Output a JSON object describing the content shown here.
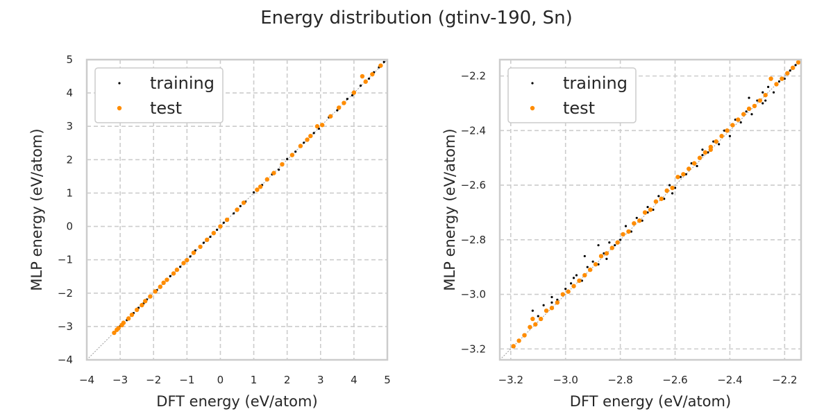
{
  "figure": {
    "title": "Energy distribution (gtinv-190, Sn)"
  },
  "colors": {
    "training": "#000000",
    "test": "#ff8c00",
    "grid": "#cccccc",
    "frame": "#cccccc",
    "diagonal": "#999999"
  },
  "chart_data": [
    {
      "type": "scatter",
      "xlabel": "DFT energy (eV/atom)",
      "ylabel": "MLP energy (eV/atom)",
      "xlim": [
        -4,
        5
      ],
      "ylim": [
        -4,
        5
      ],
      "xticks": [
        -4,
        -3,
        -2,
        -1,
        0,
        1,
        2,
        3,
        4,
        5
      ],
      "yticks": [
        -4,
        -3,
        -2,
        -1,
        0,
        1,
        2,
        3,
        4,
        5
      ],
      "xtick_labels": [
        "−4",
        "−3",
        "−2",
        "−1",
        "0",
        "1",
        "2",
        "3",
        "4",
        "5"
      ],
      "ytick_labels": [
        "−4",
        "−3",
        "−2",
        "−1",
        "0",
        "1",
        "2",
        "3",
        "4",
        "5"
      ],
      "grid": true,
      "grid_style": "dashed",
      "reference_line": "y = x",
      "legend_position": "upper-left",
      "series": [
        {
          "name": "training",
          "marker": "small-dot",
          "points": [
            [
              -3.15,
              -3.16
            ],
            [
              -3.0,
              -2.99
            ],
            [
              -2.8,
              -2.81
            ],
            [
              -2.6,
              -2.6
            ],
            [
              -2.45,
              -2.44
            ],
            [
              -2.3,
              -2.31
            ],
            [
              -2.2,
              -2.19
            ],
            [
              -1.9,
              -1.91
            ],
            [
              -1.5,
              -1.49
            ],
            [
              -1.2,
              -1.21
            ],
            [
              -0.9,
              -0.9
            ],
            [
              -0.75,
              -0.72
            ],
            [
              -0.5,
              -0.49
            ],
            [
              -0.3,
              -0.31
            ],
            [
              -0.1,
              -0.1
            ],
            [
              0.1,
              0.11
            ],
            [
              0.4,
              0.39
            ],
            [
              0.6,
              0.61
            ],
            [
              0.75,
              0.74
            ],
            [
              1.0,
              1.02
            ],
            [
              1.25,
              1.24
            ],
            [
              1.55,
              1.56
            ],
            [
              1.75,
              1.7
            ],
            [
              2.0,
              2.02
            ],
            [
              2.25,
              2.24
            ],
            [
              2.5,
              2.51
            ],
            [
              2.8,
              2.8
            ],
            [
              2.95,
              2.93
            ],
            [
              3.25,
              3.27
            ],
            [
              3.5,
              3.48
            ],
            [
              3.8,
              3.82
            ],
            [
              3.95,
              3.93
            ],
            [
              4.2,
              4.22
            ],
            [
              4.45,
              4.43
            ],
            [
              4.6,
              4.62
            ],
            [
              4.75,
              4.77
            ],
            [
              4.9,
              4.93
            ]
          ]
        },
        {
          "name": "test",
          "marker": "dot",
          "points": [
            [
              -3.18,
              -3.19
            ],
            [
              -3.1,
              -3.1
            ],
            [
              -3.05,
              -3.05
            ],
            [
              -2.95,
              -2.96
            ],
            [
              -2.9,
              -2.89
            ],
            [
              -2.75,
              -2.76
            ],
            [
              -2.65,
              -2.65
            ],
            [
              -2.5,
              -2.5
            ],
            [
              -2.35,
              -2.36
            ],
            [
              -2.25,
              -2.24
            ],
            [
              -2.1,
              -2.1
            ],
            [
              -1.95,
              -1.95
            ],
            [
              -1.8,
              -1.81
            ],
            [
              -1.7,
              -1.69
            ],
            [
              -1.6,
              -1.6
            ],
            [
              -1.4,
              -1.41
            ],
            [
              -1.3,
              -1.3
            ],
            [
              -1.1,
              -1.1
            ],
            [
              -1.0,
              -1.01
            ],
            [
              -0.8,
              -0.79
            ],
            [
              -0.6,
              -0.61
            ],
            [
              -0.4,
              -0.4
            ],
            [
              -0.2,
              -0.2
            ],
            [
              0.0,
              0.0
            ],
            [
              0.2,
              0.2
            ],
            [
              0.5,
              0.5
            ],
            [
              0.7,
              0.71
            ],
            [
              1.1,
              1.1
            ],
            [
              1.2,
              1.19
            ],
            [
              1.4,
              1.41
            ],
            [
              1.6,
              1.6
            ],
            [
              1.85,
              1.86
            ],
            [
              2.15,
              2.14
            ],
            [
              2.4,
              2.41
            ],
            [
              2.6,
              2.6
            ],
            [
              2.7,
              2.71
            ],
            [
              2.9,
              3.0
            ],
            [
              3.05,
              3.04
            ],
            [
              3.3,
              3.3
            ],
            [
              3.55,
              3.56
            ],
            [
              3.7,
              3.7
            ],
            [
              4.0,
              4.01
            ],
            [
              4.25,
              4.5
            ],
            [
              4.35,
              4.34
            ],
            [
              4.55,
              4.56
            ],
            [
              4.8,
              4.82
            ]
          ]
        }
      ]
    },
    {
      "type": "scatter",
      "xlabel": "DFT energy (eV/atom)",
      "ylabel": "MLP energy (eV/atom)",
      "xlim": [
        -3.24,
        -2.14
      ],
      "ylim": [
        -3.24,
        -2.14
      ],
      "xticks": [
        -3.2,
        -3.0,
        -2.8,
        -2.6,
        -2.4,
        -2.2
      ],
      "yticks": [
        -3.2,
        -3.0,
        -2.8,
        -2.6,
        -2.4,
        -2.2
      ],
      "xtick_labels": [
        "−3.2",
        "−3.0",
        "−2.8",
        "−2.6",
        "−2.4",
        "−2.2"
      ],
      "ytick_labels": [
        "−3.2",
        "−3.0",
        "−2.8",
        "−2.6",
        "−2.4",
        "−2.2"
      ],
      "grid": true,
      "grid_style": "dashed",
      "reference_line": "y = x",
      "legend_position": "upper-left",
      "series": [
        {
          "name": "training",
          "marker": "small-dot",
          "points": [
            [
              -3.12,
              -3.06
            ],
            [
              -3.1,
              -3.08
            ],
            [
              -3.08,
              -3.04
            ],
            [
              -3.05,
              -3.03
            ],
            [
              -3.03,
              -3.02
            ],
            [
              -3.0,
              -2.98
            ],
            [
              -2.98,
              -2.96
            ],
            [
              -2.96,
              -2.93
            ],
            [
              -2.94,
              -2.95
            ],
            [
              -2.92,
              -2.9
            ],
            [
              -2.9,
              -2.88
            ],
            [
              -2.88,
              -2.89
            ],
            [
              -2.86,
              -2.85
            ],
            [
              -2.84,
              -2.81
            ],
            [
              -2.82,
              -2.82
            ],
            [
              -2.8,
              -2.8
            ],
            [
              -2.78,
              -2.75
            ],
            [
              -2.76,
              -2.77
            ],
            [
              -2.74,
              -2.72
            ],
            [
              -2.72,
              -2.73
            ],
            [
              -2.7,
              -2.68
            ],
            [
              -2.68,
              -2.69
            ],
            [
              -2.66,
              -2.64
            ],
            [
              -2.64,
              -2.65
            ],
            [
              -2.62,
              -2.6
            ],
            [
              -2.6,
              -2.61
            ],
            [
              -2.58,
              -2.57
            ],
            [
              -2.56,
              -2.56
            ],
            [
              -2.54,
              -2.52
            ],
            [
              -2.52,
              -2.53
            ],
            [
              -2.5,
              -2.49
            ],
            [
              -2.48,
              -2.48
            ],
            [
              -2.46,
              -2.44
            ],
            [
              -2.44,
              -2.45
            ],
            [
              -2.42,
              -2.4
            ],
            [
              -2.4,
              -2.42
            ],
            [
              -2.38,
              -2.36
            ],
            [
              -2.36,
              -2.37
            ],
            [
              -2.34,
              -2.33
            ],
            [
              -2.32,
              -2.34
            ],
            [
              -2.3,
              -2.29
            ],
            [
              -2.28,
              -2.3
            ],
            [
              -2.26,
              -2.24
            ],
            [
              -2.24,
              -2.26
            ],
            [
              -2.22,
              -2.22
            ],
            [
              -2.2,
              -2.21
            ],
            [
              -2.18,
              -2.18
            ],
            [
              -2.16,
              -2.16
            ],
            [
              -2.93,
              -2.86
            ],
            [
              -2.88,
              -2.82
            ],
            [
              -2.7,
              -2.7
            ],
            [
              -2.61,
              -2.63
            ],
            [
              -2.5,
              -2.47
            ],
            [
              -2.28,
              -2.26
            ],
            [
              -3.05,
              -3.01
            ],
            [
              -2.97,
              -2.94
            ],
            [
              -2.85,
              -2.87
            ],
            [
              -2.33,
              -2.28
            ],
            [
              -2.27,
              -2.29
            ]
          ]
        },
        {
          "name": "test",
          "marker": "dot",
          "points": [
            [
              -3.19,
              -3.19
            ],
            [
              -3.17,
              -3.17
            ],
            [
              -3.15,
              -3.15
            ],
            [
              -3.13,
              -3.12
            ],
            [
              -3.12,
              -3.09
            ],
            [
              -3.11,
              -3.11
            ],
            [
              -3.09,
              -3.09
            ],
            [
              -3.07,
              -3.06
            ],
            [
              -3.05,
              -3.05
            ],
            [
              -3.03,
              -3.03
            ],
            [
              -3.01,
              -3.0
            ],
            [
              -2.99,
              -2.99
            ],
            [
              -2.97,
              -2.97
            ],
            [
              -2.95,
              -2.95
            ],
            [
              -2.93,
              -2.93
            ],
            [
              -2.91,
              -2.91
            ],
            [
              -2.89,
              -2.89
            ],
            [
              -2.87,
              -2.86
            ],
            [
              -2.85,
              -2.85
            ],
            [
              -2.83,
              -2.83
            ],
            [
              -2.81,
              -2.81
            ],
            [
              -2.79,
              -2.78
            ],
            [
              -2.77,
              -2.77
            ],
            [
              -2.75,
              -2.74
            ],
            [
              -2.73,
              -2.73
            ],
            [
              -2.71,
              -2.7
            ],
            [
              -2.69,
              -2.69
            ],
            [
              -2.67,
              -2.66
            ],
            [
              -2.65,
              -2.65
            ],
            [
              -2.63,
              -2.62
            ],
            [
              -2.61,
              -2.61
            ],
            [
              -2.59,
              -2.57
            ],
            [
              -2.57,
              -2.56
            ],
            [
              -2.55,
              -2.54
            ],
            [
              -2.53,
              -2.52
            ],
            [
              -2.51,
              -2.5
            ],
            [
              -2.49,
              -2.48
            ],
            [
              -2.47,
              -2.47
            ],
            [
              -2.47,
              -2.46
            ],
            [
              -2.45,
              -2.44
            ],
            [
              -2.43,
              -2.42
            ],
            [
              -2.41,
              -2.4
            ],
            [
              -2.39,
              -2.38
            ],
            [
              -2.37,
              -2.36
            ],
            [
              -2.35,
              -2.34
            ],
            [
              -2.33,
              -2.32
            ],
            [
              -2.31,
              -2.31
            ],
            [
              -2.29,
              -2.29
            ],
            [
              -2.27,
              -2.27
            ],
            [
              -2.25,
              -2.21
            ],
            [
              -2.23,
              -2.23
            ],
            [
              -2.21,
              -2.21
            ],
            [
              -2.19,
              -2.19
            ],
            [
              -2.17,
              -2.17
            ],
            [
              -2.15,
              -2.15
            ]
          ]
        }
      ]
    }
  ]
}
